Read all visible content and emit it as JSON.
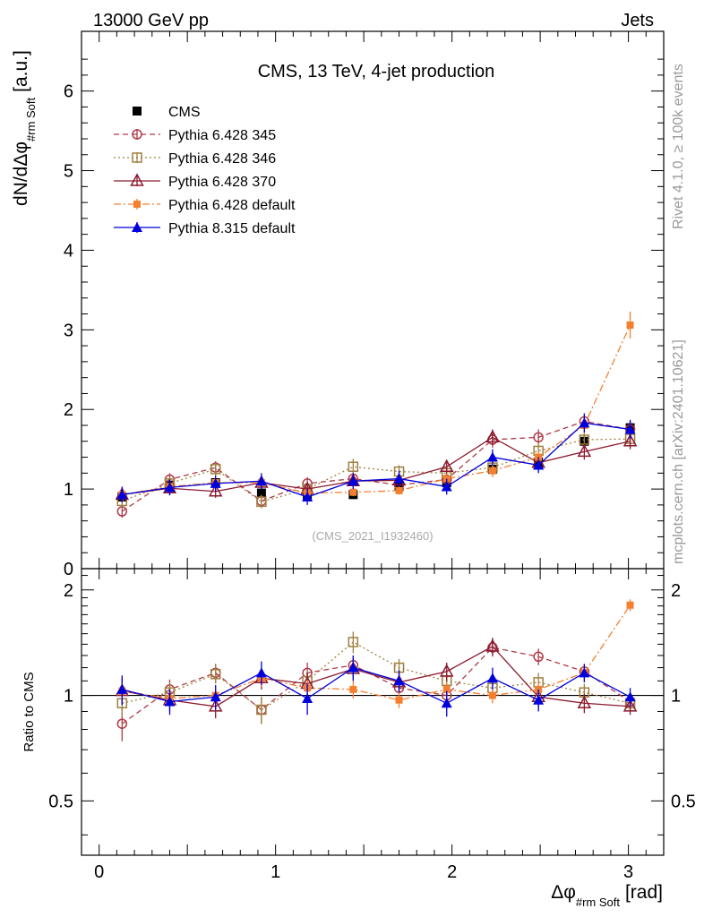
{
  "header": {
    "left": "13000 GeV pp",
    "right": "Jets"
  },
  "side_labels": {
    "rivet": "Rivet 4.1.0, ≥ 100k events",
    "mcplots": "mcplots.cern.ch [arXiv:2401.10621]"
  },
  "chart_data": {
    "type": "scatter",
    "title": "CMS, 13 TeV, 4-jet production",
    "analysis_id": "(CMS_2021_I1932460)",
    "xlabel_main": "Δφ",
    "xlabel_sub": "#rm Soft",
    "xlabel_unit": "[rad]",
    "ylabel_main": "dN/dΔφ",
    "ylabel_sub": "#rm Soft",
    "ylabel_unit": "[a.u.]",
    "ratio_ylabel": "Ratio to CMS",
    "xlim": [
      -0.1,
      3.2
    ],
    "ylim": [
      0,
      6.75
    ],
    "ratio_ylim": [
      0.35,
      2.3
    ],
    "x_ticks": [
      0,
      1,
      2,
      3
    ],
    "y_ticks": [
      0,
      1,
      2,
      3,
      4,
      5,
      6
    ],
    "ratio_ticks": [
      0.5,
      1,
      2
    ],
    "x": [
      0.13,
      0.4,
      0.66,
      0.92,
      1.18,
      1.44,
      1.7,
      1.97,
      2.23,
      2.49,
      2.75,
      3.01
    ],
    "series": [
      {
        "name": "CMS",
        "color": "#000000",
        "marker": "filled-square",
        "line": "none",
        "values": [
          0.9,
          1.05,
          1.08,
          0.95,
          0.9,
          0.93,
          1.03,
          1.08,
          1.25,
          1.34,
          1.6,
          1.77
        ],
        "errors": [
          0.05,
          0.05,
          0.05,
          0.05,
          0.05,
          0.05,
          0.05,
          0.05,
          0.06,
          0.06,
          0.07,
          0.08
        ]
      },
      {
        "name": "Pythia 6.428 345",
        "color": "#b03a48",
        "marker": "open-circle",
        "line": "dashed",
        "values": [
          0.72,
          1.12,
          1.27,
          0.85,
          1.07,
          1.13,
          1.05,
          1.12,
          1.62,
          1.65,
          1.85,
          1.75
        ],
        "errors": [
          0.08,
          0.08,
          0.08,
          0.08,
          0.08,
          0.08,
          0.08,
          0.08,
          0.1,
          0.1,
          0.1,
          0.1
        ]
      },
      {
        "name": "Pythia 6.428 346",
        "color": "#a08040",
        "marker": "open-square",
        "line": "dotted",
        "values": [
          0.85,
          1.07,
          1.25,
          0.84,
          1.0,
          1.28,
          1.22,
          1.2,
          1.27,
          1.48,
          1.62,
          1.63
        ],
        "errors": [
          0.08,
          0.08,
          0.08,
          0.08,
          0.08,
          0.1,
          0.08,
          0.08,
          0.08,
          0.1,
          0.1,
          0.1
        ]
      },
      {
        "name": "Pythia 6.428 370",
        "color": "#8b1a2e",
        "marker": "open-triangle",
        "line": "solid",
        "values": [
          0.93,
          1.01,
          0.97,
          1.08,
          1.0,
          1.1,
          1.11,
          1.28,
          1.65,
          1.33,
          1.47,
          1.6
        ],
        "errors": [
          0.08,
          0.08,
          0.08,
          0.08,
          0.08,
          0.08,
          0.08,
          0.08,
          0.1,
          0.1,
          0.1,
          0.1
        ]
      },
      {
        "name": "Pythia 6.428 default",
        "color": "#f57f30",
        "marker": "filled-square-small",
        "line": "dashdot",
        "values": [
          0.93,
          1.03,
          1.08,
          1.08,
          0.95,
          0.96,
          0.98,
          1.13,
          1.23,
          1.4,
          1.8,
          3.06
        ],
        "errors": [
          0.05,
          0.05,
          0.05,
          0.05,
          0.05,
          0.05,
          0.05,
          0.05,
          0.08,
          0.08,
          0.1,
          0.17
        ]
      },
      {
        "name": "Pythia 8.315 default",
        "color": "#0000dd",
        "marker": "filled-triangle",
        "line": "solid",
        "values": [
          0.93,
          1.02,
          1.07,
          1.1,
          0.9,
          1.1,
          1.13,
          1.03,
          1.4,
          1.3,
          1.83,
          1.75
        ],
        "errors": [
          0.1,
          0.1,
          0.1,
          0.1,
          0.1,
          0.1,
          0.1,
          0.1,
          0.1,
          0.1,
          0.12,
          0.12
        ]
      }
    ],
    "ratios": {
      "Pythia 6.428 345": {
        "values": [
          0.83,
          1.04,
          1.16,
          0.91,
          1.16,
          1.22,
          1.05,
          1.0,
          1.37,
          1.29,
          1.17,
          0.96
        ],
        "errors": [
          0.09,
          0.07,
          0.07,
          0.08,
          0.08,
          0.08,
          0.07,
          0.07,
          0.08,
          0.07,
          0.06,
          0.05
        ]
      },
      "Pythia 6.428 346": {
        "values": [
          0.95,
          1.02,
          1.15,
          0.91,
          1.1,
          1.42,
          1.2,
          1.1,
          1.05,
          1.09,
          1.02,
          0.95
        ],
        "errors": [
          0.08,
          0.07,
          0.07,
          0.08,
          0.08,
          0.1,
          0.07,
          0.07,
          0.06,
          0.07,
          0.06,
          0.05
        ]
      },
      "Pythia 6.428 370": {
        "values": [
          1.03,
          0.97,
          0.93,
          1.12,
          1.08,
          1.19,
          1.09,
          1.17,
          1.38,
          0.99,
          0.95,
          0.93
        ],
        "errors": [
          0.09,
          0.07,
          0.07,
          0.08,
          0.08,
          0.08,
          0.07,
          0.07,
          0.08,
          0.07,
          0.06,
          0.05
        ]
      },
      "Pythia 6.428 default": {
        "values": [
          1.03,
          0.98,
          1.0,
          1.12,
          1.05,
          1.04,
          0.97,
          1.04,
          1.0,
          1.04,
          1.16,
          1.81
        ],
        "errors": [
          0.06,
          0.05,
          0.05,
          0.06,
          0.06,
          0.06,
          0.05,
          0.05,
          0.05,
          0.05,
          0.06,
          0.07
        ]
      },
      "Pythia 8.315 default": {
        "values": [
          1.04,
          0.96,
          0.99,
          1.16,
          0.98,
          1.2,
          1.1,
          0.95,
          1.12,
          0.97,
          1.16,
          0.99
        ],
        "errors": [
          0.1,
          0.08,
          0.08,
          0.09,
          0.1,
          0.1,
          0.08,
          0.08,
          0.08,
          0.07,
          0.07,
          0.06
        ]
      }
    }
  }
}
